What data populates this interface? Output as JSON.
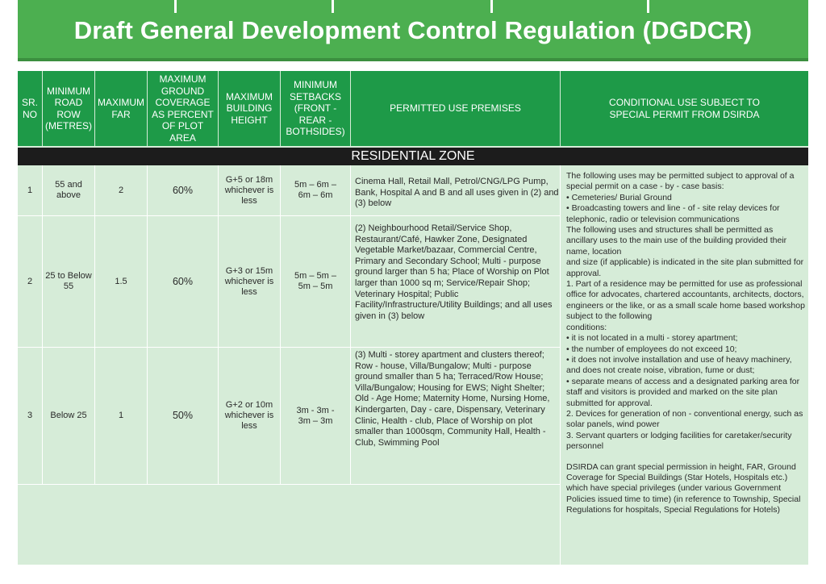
{
  "title": "Draft General Development Control Regulation (DGDCR)",
  "headers": {
    "sr_no": "SR. NO",
    "road_row": "MINIMUM ROAD ROW (METRES)",
    "far": "MAXIMUM FAR",
    "ground_coverage": "MAXIMUM GROUND COVERAGE AS PERCENT OF PLOT AREA",
    "height": "MAXIMUM BUILDING HEIGHT",
    "setbacks": "MINIMUM SETBACKS (FRONT - REAR - BOTHSIDES)",
    "permitted": "PERMITTED USE PREMISES",
    "conditional": "CONDITIONAL USE SUBJECT TO SPECIAL PERMIT FROM DSIRDA"
  },
  "zone_label": "RESIDENTIAL ZONE",
  "rows": [
    {
      "sr": "1",
      "road": "55 and above",
      "far": "2",
      "coverage": "60%",
      "height": "G+5 or 18m whichever is less",
      "setbacks": "5m – 6m – 6m – 6m",
      "permitted": "Cinema Hall, Retail Mall, Petrol/CNG/LPG Pump, Bank, Hospital A and B and all uses given in (2) and (3) below"
    },
    {
      "sr": "2",
      "road": "25 to Below 55",
      "far": "1.5",
      "coverage": "60%",
      "height": "G+3 or 15m whichever is less",
      "setbacks": "5m – 5m – 5m – 5m",
      "permitted": "(2) Neighbourhood Retail/Service Shop, Restaurant/Café, Hawker Zone, Designated Vegetable Market/bazaar, Commercial Centre, Primary and Secondary School; Multi - purpose ground larger than 5 ha; Place of Worship on Plot larger than 1000 sq m; Service/Repair Shop; Veterinary Hospital; Public Facility/Infrastructure/Utility Buildings; and all uses given in (3) below"
    },
    {
      "sr": "3",
      "road": "Below 25",
      "far": "1",
      "coverage": "50%",
      "height": "G+2 or 10m whichever is less",
      "setbacks": "3m - 3m - 3m – 3m",
      "permitted": "(3) Multi - storey apartment and clusters thereof; Row - house, Villa/Bungalow; Multi - purpose ground smaller than 5 ha; Terraced/Row House; Villa/Bungalow; Housing for EWS; Night Shelter; Old - Age Home; Maternity Home, Nursing Home, Kindergarten, Day - care, Dispensary, Veterinary Clinic, Health - club, Place of Worship on plot smaller than 1000sqm, Community Hall, Health - Club, Swimming Pool"
    }
  ],
  "conditional_text": [
    "The following uses may be permitted subject to approval of a special permit on a case - by - case basis:",
    "• Cemeteries/ Burial Ground",
    "• Broadcasting towers and line - of - site relay devices for telephonic, radio or television communications",
    "The following uses and structures shall be permitted as ancillary uses to the main use of the building provided their name, location",
    "and size (if applicable) is indicated in the site plan submitted for approval.",
    "1. Part of a residence may be permitted for use as professional office for advocates, chartered accountants, architects, doctors, engineers or the like, or as a small scale home based workshop subject to the following",
    "conditions:",
    "• it is not located in a multi - storey apartment;",
    "• the number of employees do not exceed 10;",
    "• it does not involve installation and use of heavy machinery, and does not create noise, vibration, fume or dust;",
    "• separate means of access and a designated parking area for staff and visitors is provided and marked on the site plan submitted for approval.",
    "2. Devices for generation of non - conventional energy, such as solar panels, wind power",
    "3. Servant quarters or lodging facilities for caretaker/security personnel"
  ],
  "special_note": "DSIRDA can grant special permission in height, FAR, Ground Coverage for Special Buildings (Star Hotels, Hospitals etc.) which have special privileges (under various Government Policies issued time to time) (in reference to Township, Special Regulations for hospitals, Special Regulations for Hotels)"
}
